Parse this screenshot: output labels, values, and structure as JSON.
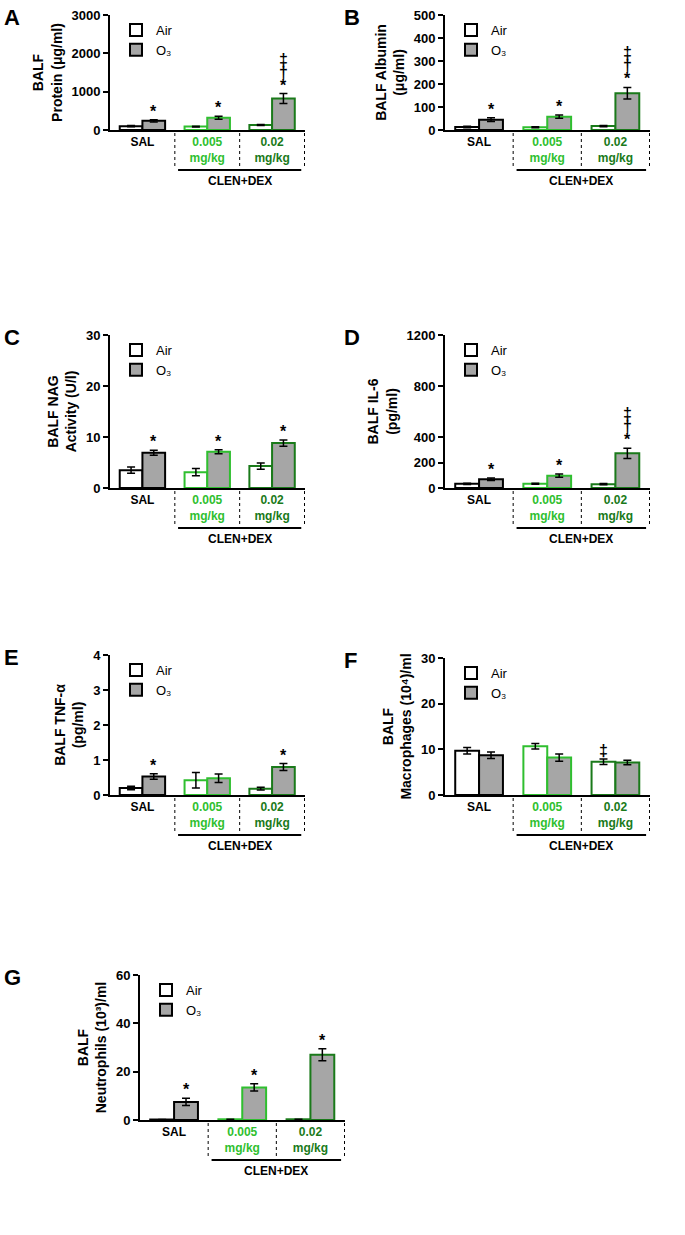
{
  "chart_data": [
    {
      "type": "bar",
      "title": "A",
      "ylabel": [
        "BALF",
        "Protein (μg/ml)"
      ],
      "categories": [
        "SAL",
        "0.005 mg/kg",
        "0.02 mg/kg"
      ],
      "series": [
        {
          "name": "Air",
          "color": "#ffffff",
          "values": [
            100,
            90,
            130
          ],
          "error": [
            15,
            10,
            15
          ]
        },
        {
          "name": "O₃",
          "color": "#a6a6a6",
          "values": [
            240,
            320,
            820
          ],
          "error": [
            30,
            40,
            130
          ]
        }
      ],
      "ylim": [
        0,
        3000
      ],
      "yticks": [
        0,
        1000,
        2000,
        3000
      ],
      "grid": false,
      "legend": "upper left",
      "annotations": [
        {
          "text": "CLEN+DEX",
          "categories": [
            "0.005 mg/kg",
            "0.02 mg/kg"
          ]
        },
        {
          "text": "*",
          "category": "SAL",
          "series": "O₃"
        },
        {
          "text": "*",
          "category": "0.005 mg/kg",
          "series": "O₃"
        },
        {
          "text": "*",
          "category": "0.02 mg/kg",
          "series": "O₃"
        },
        {
          "text": "†",
          "category": "0.02 mg/kg",
          "series": "O₃"
        },
        {
          "text": "‡",
          "category": "0.02 mg/kg",
          "series": "O₃"
        }
      ]
    },
    {
      "type": "bar",
      "title": "B",
      "ylabel": [
        "BALF Albumin",
        "(μg/ml)"
      ],
      "categories": [
        "SAL",
        "0.005 mg/kg",
        "0.02 mg/kg"
      ],
      "series": [
        {
          "name": "Air",
          "color": "#ffffff",
          "values": [
            13,
            12,
            17
          ],
          "error": [
            3,
            2,
            3
          ]
        },
        {
          "name": "O₃",
          "color": "#a6a6a6",
          "values": [
            45,
            58,
            160
          ],
          "error": [
            8,
            7,
            25
          ]
        }
      ],
      "ylim": [
        0,
        500
      ],
      "yticks": [
        0,
        100,
        200,
        300,
        400,
        500
      ],
      "grid": false,
      "legend": "upper left",
      "annotations": [
        {
          "text": "CLEN+DEX",
          "categories": [
            "0.005 mg/kg",
            "0.02 mg/kg"
          ]
        },
        {
          "text": "*",
          "category": "SAL",
          "series": "O₃"
        },
        {
          "text": "*",
          "category": "0.005 mg/kg",
          "series": "O₃"
        },
        {
          "text": "*",
          "category": "0.02 mg/kg",
          "series": "O₃"
        },
        {
          "text": "†",
          "category": "0.02 mg/kg",
          "series": "O₃"
        },
        {
          "text": "‡",
          "category": "0.02 mg/kg",
          "series": "O₃"
        }
      ]
    },
    {
      "type": "bar",
      "title": "C",
      "ylabel": [
        "BALF NAG",
        "Activity (U/l)"
      ],
      "categories": [
        "SAL",
        "0.005 mg/kg",
        "0.02 mg/kg"
      ],
      "series": [
        {
          "name": "Air",
          "color": "#ffffff",
          "values": [
            3.5,
            3.1,
            4.3
          ],
          "error": [
            0.6,
            0.7,
            0.6
          ]
        },
        {
          "name": "O₃",
          "color": "#a6a6a6",
          "values": [
            6.9,
            7.1,
            8.8
          ],
          "error": [
            0.5,
            0.4,
            0.6
          ]
        }
      ],
      "ylim": [
        0,
        30
      ],
      "yticks": [
        0,
        10,
        20,
        30
      ],
      "grid": false,
      "legend": "upper left",
      "annotations": [
        {
          "text": "CLEN+DEX",
          "categories": [
            "0.005 mg/kg",
            "0.02 mg/kg"
          ]
        },
        {
          "text": "*",
          "category": "SAL",
          "series": "O₃"
        },
        {
          "text": "*",
          "category": "0.005 mg/kg",
          "series": "O₃"
        },
        {
          "text": "*",
          "category": "0.02 mg/kg",
          "series": "O₃"
        }
      ]
    },
    {
      "type": "bar",
      "title": "D",
      "ylabel": [
        "BALF IL-6",
        "(pg/ml)"
      ],
      "categories": [
        "SAL",
        "0.005 mg/kg",
        "0.02 mg/kg"
      ],
      "series": [
        {
          "name": "Air",
          "color": "#ffffff",
          "values": [
            33,
            33,
            30
          ],
          "error": [
            5,
            4,
            5
          ]
        },
        {
          "name": "O₃",
          "color": "#a6a6a6",
          "values": [
            68,
            97,
            272
          ],
          "error": [
            10,
            12,
            40
          ]
        }
      ],
      "ylim": [
        0,
        1200
      ],
      "yticks": [
        0,
        200,
        400,
        800,
        1200
      ],
      "grid": false,
      "legend": "upper left",
      "annotations": [
        {
          "text": "CLEN+DEX",
          "categories": [
            "0.005 mg/kg",
            "0.02 mg/kg"
          ]
        },
        {
          "text": "*",
          "category": "SAL",
          "series": "O₃"
        },
        {
          "text": "*",
          "category": "0.005 mg/kg",
          "series": "O₃"
        },
        {
          "text": "*",
          "category": "0.02 mg/kg",
          "series": "O₃"
        },
        {
          "text": "†",
          "category": "0.02 mg/kg",
          "series": "O₃"
        },
        {
          "text": "‡",
          "category": "0.02 mg/kg",
          "series": "O₃"
        }
      ]
    },
    {
      "type": "bar",
      "title": "E",
      "ylabel": [
        "BALF TNF-α",
        "(pg/ml)"
      ],
      "categories": [
        "SAL",
        "0.005 mg/kg",
        "0.02 mg/kg"
      ],
      "series": [
        {
          "name": "Air",
          "color": "#ffffff",
          "values": [
            0.2,
            0.42,
            0.18
          ],
          "error": [
            0.05,
            0.22,
            0.04
          ]
        },
        {
          "name": "O₃",
          "color": "#a6a6a6",
          "values": [
            0.53,
            0.48,
            0.8
          ],
          "error": [
            0.08,
            0.12,
            0.1
          ]
        }
      ],
      "ylim": [
        0,
        4
      ],
      "yticks": [
        0,
        1,
        2,
        3,
        4
      ],
      "grid": false,
      "legend": "upper left",
      "annotations": [
        {
          "text": "CLEN+DEX",
          "categories": [
            "0.005 mg/kg",
            "0.02 mg/kg"
          ]
        },
        {
          "text": "*",
          "category": "SAL",
          "series": "O₃"
        },
        {
          "text": "*",
          "category": "0.02 mg/kg",
          "series": "O₃"
        }
      ]
    },
    {
      "type": "bar",
      "title": "F",
      "ylabel": [
        "BALF",
        "Macrophages (10⁴)/ml"
      ],
      "categories": [
        "SAL",
        "0.005 mg/kg",
        "0.02 mg/kg"
      ],
      "series": [
        {
          "name": "Air",
          "color": "#ffffff",
          "values": [
            9.7,
            10.7,
            7.3
          ],
          "error": [
            0.7,
            0.6,
            0.6
          ]
        },
        {
          "name": "O₃",
          "color": "#a6a6a6",
          "values": [
            8.7,
            8.2,
            7.1
          ],
          "error": [
            0.7,
            0.8,
            0.5
          ]
        }
      ],
      "ylim": [
        0,
        30
      ],
      "yticks": [
        0,
        10,
        20,
        30
      ],
      "grid": false,
      "legend": "upper left",
      "annotations": [
        {
          "text": "CLEN+DEX",
          "categories": [
            "0.005 mg/kg",
            "0.02 mg/kg"
          ]
        },
        {
          "text": "‡",
          "category": "0.02 mg/kg",
          "series": "Air"
        }
      ]
    },
    {
      "type": "bar",
      "title": "G",
      "ylabel": [
        "BALF",
        "Neutrophils (10³)/ml"
      ],
      "categories": [
        "SAL",
        "0.005 mg/kg",
        "0.02 mg/kg"
      ],
      "series": [
        {
          "name": "Air",
          "color": "#ffffff",
          "values": [
            0.2,
            0.3,
            0.3
          ],
          "error": [
            0.05,
            0.05,
            0.05
          ]
        },
        {
          "name": "O₃",
          "color": "#a6a6a6",
          "values": [
            7.5,
            13.5,
            27
          ],
          "error": [
            1.5,
            1.5,
            2.5
          ]
        }
      ],
      "ylim": [
        0,
        60
      ],
      "yticks": [
        0,
        20,
        40,
        60
      ],
      "grid": false,
      "legend": "upper left",
      "annotations": [
        {
          "text": "CLEN+DEX",
          "categories": [
            "0.005 mg/kg",
            "0.02 mg/kg"
          ]
        },
        {
          "text": "*",
          "category": "SAL",
          "series": "O₃"
        },
        {
          "text": "*",
          "category": "0.005 mg/kg",
          "series": "O₃"
        },
        {
          "text": "*",
          "category": "0.02 mg/kg",
          "series": "O₃"
        }
      ]
    }
  ]
}
